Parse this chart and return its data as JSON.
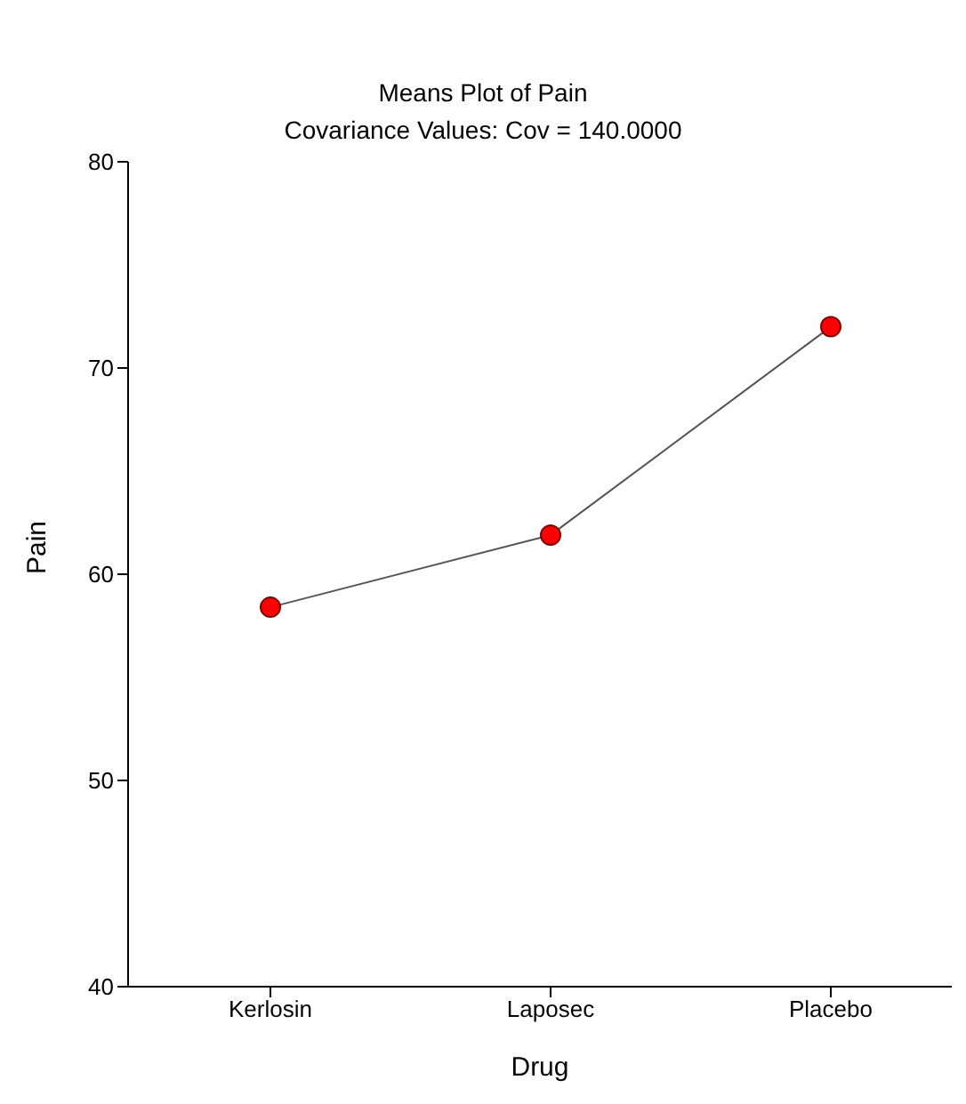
{
  "chart_data": {
    "type": "line",
    "title": "Means Plot of Pain",
    "subtitle": "Covariance Values: Cov = 140.0000",
    "xlabel": "Drug",
    "ylabel": "Pain",
    "categories": [
      "Kerlosin",
      "Laposec",
      "Placebo"
    ],
    "series": [
      {
        "color": "#ff0000",
        "values": [
          58.4,
          61.9,
          72.0
        ]
      }
    ],
    "ylim": [
      40,
      80
    ],
    "yticks": [
      40,
      50,
      60,
      70,
      80
    ],
    "grid": false,
    "legend": false,
    "marker": "circle",
    "line_style": "solid"
  }
}
